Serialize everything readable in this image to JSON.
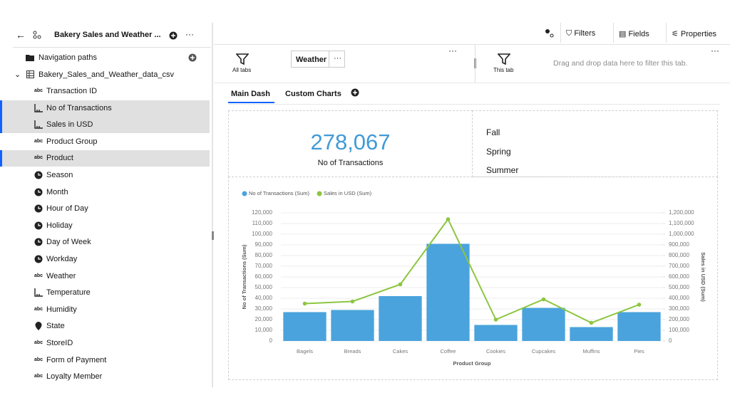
{
  "header": {
    "title": "Bakery Sales and Weather ...",
    "toolbar": [
      "Filters",
      "Fields",
      "Properties"
    ]
  },
  "sidebar": {
    "navigation_paths": "Navigation paths",
    "source": "Bakery_Sales_and_Weather_data_csv",
    "fields": [
      {
        "name": "Transaction ID",
        "kind": "abc",
        "selected": false
      },
      {
        "name": "No of Transactions",
        "kind": "measure",
        "selected": true
      },
      {
        "name": "Sales in USD",
        "kind": "measure",
        "selected": true
      },
      {
        "name": "Product Group",
        "kind": "abc",
        "selected": false
      },
      {
        "name": "Product",
        "kind": "abc",
        "selected": true
      },
      {
        "name": "Season",
        "kind": "time",
        "selected": false
      },
      {
        "name": "Month",
        "kind": "time",
        "selected": false
      },
      {
        "name": "Hour of Day",
        "kind": "time",
        "selected": false
      },
      {
        "name": "Holiday",
        "kind": "time",
        "selected": false
      },
      {
        "name": "Day of Week",
        "kind": "time",
        "selected": false
      },
      {
        "name": "Workday",
        "kind": "time",
        "selected": false
      },
      {
        "name": "Weather",
        "kind": "abc",
        "selected": false
      },
      {
        "name": "Temperature",
        "kind": "measure",
        "selected": false
      },
      {
        "name": "Humidity",
        "kind": "abc",
        "selected": false
      },
      {
        "name": "State",
        "kind": "geo",
        "selected": false
      },
      {
        "name": "StoreID",
        "kind": "abc",
        "selected": false
      },
      {
        "name": "Form of Payment",
        "kind": "abc",
        "selected": false
      },
      {
        "name": "Loyalty Member",
        "kind": "abc",
        "selected": false
      }
    ]
  },
  "filter_bar": {
    "all_tabs": "All tabs",
    "chip": "Weather",
    "this_tab": "This tab",
    "drop_hint": "Drag and drop data here to filter this tab."
  },
  "tabs": [
    "Main Dash",
    "Custom Charts"
  ],
  "kpi": {
    "value": "278,067",
    "label": "No of Transactions"
  },
  "list": [
    "Fall",
    "Spring",
    "Summer"
  ],
  "chart_data": {
    "type": "bar_line",
    "categories": [
      "Bagels",
      "Breads",
      "Cakes",
      "Coffee",
      "Cookies",
      "Cupcakes",
      "Muffins",
      "Pies"
    ],
    "xlabel": "Product Group",
    "ylabel": "No of Transactions (Sum)",
    "y2label": "Sales in USD (Sum)",
    "series": [
      {
        "name": "No of Transactions (Sum)",
        "color": "#4aa3dc",
        "values": [
          27000,
          29000,
          42000,
          91000,
          15000,
          31000,
          13000,
          27000
        ]
      },
      {
        "name": "Sales in USD (Sum)",
        "color": "#8cc63f",
        "axis": "y2",
        "values": [
          350000,
          370000,
          530000,
          1140000,
          200000,
          390000,
          170000,
          340000
        ]
      }
    ],
    "ylim": [
      0,
      120000
    ],
    "yticks": [
      0,
      {
        "value": 10000,
        "label": "10,000"
      },
      {
        "value": 20000,
        "label": "20,000"
      },
      {
        "value": 30000,
        "label": "30,000"
      },
      {
        "value": 40000,
        "label": "40,000"
      },
      {
        "value": 50000,
        "label": "50,000"
      },
      {
        "value": 60000,
        "label": "60,000"
      },
      {
        "value": 70000,
        "label": "70,000"
      },
      {
        "value": 80000,
        "label": "80,000"
      },
      {
        "value": 90000,
        "label": "90,000"
      },
      {
        "value": 100000,
        "label": "100,000"
      },
      {
        "value": 110000,
        "label": "110,000"
      },
      {
        "value": 120000,
        "label": "120,000"
      }
    ],
    "y2lim": [
      0,
      1200000
    ],
    "y2ticks": [
      0,
      {
        "value": 100000,
        "label": "100,000"
      },
      {
        "value": 200000,
        "label": "200,000"
      },
      {
        "value": 300000,
        "label": "300,000"
      },
      {
        "value": 400000,
        "label": "400,000"
      },
      {
        "value": 500000,
        "label": "500,000"
      },
      {
        "value": 600000,
        "label": "600,000"
      },
      {
        "value": 700000,
        "label": "700,000"
      },
      {
        "value": 800000,
        "label": "800,000"
      },
      {
        "value": 900000,
        "label": "900,000"
      },
      {
        "value": 1000000,
        "label": "1,000,000"
      },
      {
        "value": 1100000,
        "label": "1,100,000"
      },
      {
        "value": 1200000,
        "label": "1,200,000"
      }
    ],
    "grid": true
  }
}
